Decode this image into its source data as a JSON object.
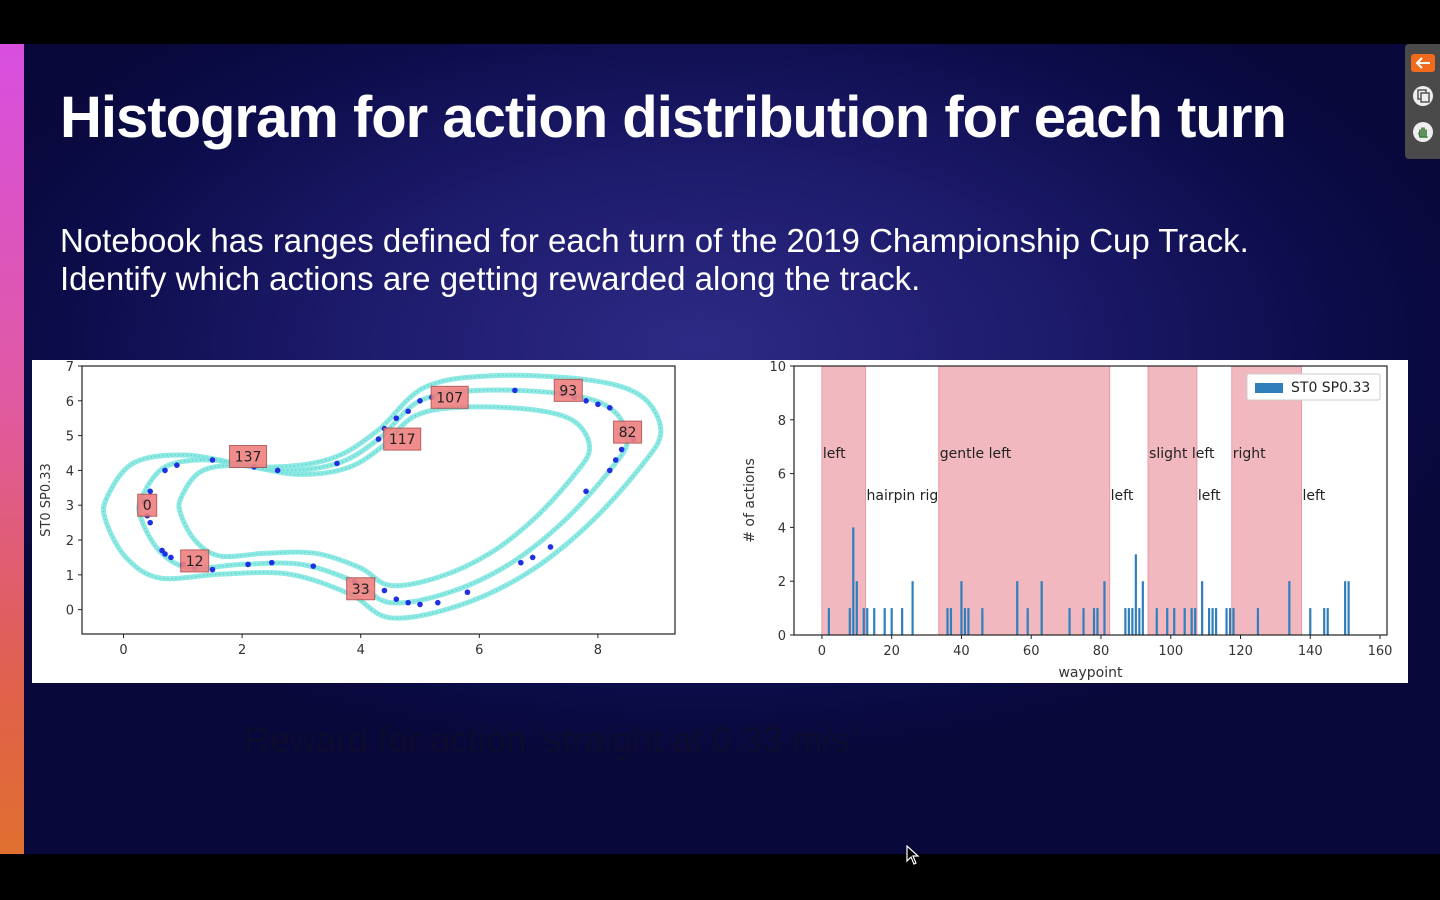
{
  "slide": {
    "title": "Histogram for action distribution for each turn",
    "subtitle_line1": "Notebook has ranges defined for each turn of the 2019 Championship Cup Track.",
    "subtitle_line2": "Identify which actions are getting rewarded along the track.",
    "caption": "Reward for action ‘straight at 0.33 m/s’"
  },
  "toolbar": {
    "icons": [
      "back-arrow-icon",
      "copy-icon",
      "hand-icon"
    ],
    "accent_color": "#f26b1d"
  },
  "chart_data": [
    {
      "type": "scatter",
      "ylabel": "ST0 SP0.33",
      "xlim": [
        -0.7,
        9.3
      ],
      "ylim": [
        -0.7,
        7
      ],
      "xticks": [
        0,
        2,
        4,
        6,
        8
      ],
      "yticks": [
        0,
        1,
        2,
        3,
        4,
        5,
        6,
        7
      ],
      "waypoint_labels": [
        {
          "text": "0",
          "x": 0.4,
          "y": 3.0
        },
        {
          "text": "12",
          "x": 1.2,
          "y": 1.4
        },
        {
          "text": "33",
          "x": 4.0,
          "y": 0.6
        },
        {
          "text": "82",
          "x": 8.5,
          "y": 5.1
        },
        {
          "text": "93",
          "x": 7.5,
          "y": 6.3
        },
        {
          "text": "107",
          "x": 5.5,
          "y": 6.1
        },
        {
          "text": "117",
          "x": 4.7,
          "y": 4.9
        },
        {
          "text": "137",
          "x": 2.1,
          "y": 4.4
        }
      ],
      "action_points": [
        [
          0.45,
          3.4
        ],
        [
          0.35,
          3.1
        ],
        [
          0.4,
          2.7
        ],
        [
          0.45,
          2.5
        ],
        [
          0.65,
          1.7
        ],
        [
          0.7,
          1.6
        ],
        [
          0.8,
          1.5
        ],
        [
          1.0,
          1.3
        ],
        [
          1.2,
          1.2
        ],
        [
          1.5,
          1.15
        ],
        [
          2.1,
          1.3
        ],
        [
          2.5,
          1.35
        ],
        [
          3.2,
          1.25
        ],
        [
          3.9,
          0.8
        ],
        [
          4.4,
          0.55
        ],
        [
          4.6,
          0.3
        ],
        [
          4.8,
          0.2
        ],
        [
          5.0,
          0.15
        ],
        [
          5.3,
          0.2
        ],
        [
          5.8,
          0.5
        ],
        [
          6.7,
          1.35
        ],
        [
          6.9,
          1.5
        ],
        [
          7.2,
          1.8
        ],
        [
          7.8,
          3.4
        ],
        [
          8.2,
          4.0
        ],
        [
          8.3,
          4.3
        ],
        [
          8.4,
          4.6
        ],
        [
          8.6,
          4.9
        ],
        [
          8.2,
          5.8
        ],
        [
          8.0,
          5.9
        ],
        [
          7.8,
          6.0
        ],
        [
          7.6,
          6.1
        ],
        [
          7.4,
          6.2
        ],
        [
          6.6,
          6.3
        ],
        [
          5.2,
          6.1
        ],
        [
          5.0,
          6.0
        ],
        [
          4.8,
          5.7
        ],
        [
          4.6,
          5.5
        ],
        [
          4.4,
          5.2
        ],
        [
          4.3,
          4.9
        ],
        [
          3.6,
          4.2
        ],
        [
          2.6,
          4.0
        ],
        [
          2.2,
          4.1
        ],
        [
          1.5,
          4.3
        ],
        [
          0.9,
          4.15
        ],
        [
          0.7,
          4.0
        ]
      ]
    },
    {
      "type": "bar",
      "xlabel": "waypoint",
      "ylabel": "# of actions",
      "xlim": [
        -8,
        162
      ],
      "ylim": [
        0,
        10
      ],
      "xticks": [
        0,
        20,
        40,
        60,
        80,
        100,
        120,
        140,
        160
      ],
      "yticks": [
        0,
        2,
        4,
        6,
        8,
        10
      ],
      "legend_location": "upper right",
      "series": [
        {
          "name": "ST0 SP0.33",
          "color": "#2f7fbd",
          "x": [
            2,
            8,
            9,
            10,
            12,
            13,
            15,
            18,
            20,
            23,
            26,
            36,
            37,
            40,
            41,
            42,
            46,
            56,
            59,
            63,
            71,
            75,
            78,
            79,
            81,
            87,
            88,
            89,
            90,
            91,
            92,
            96,
            99,
            101,
            104,
            106,
            107,
            109,
            111,
            112,
            113,
            116,
            117,
            118,
            125,
            134,
            140,
            144,
            145,
            150,
            151
          ],
          "values": [
            1,
            1,
            4,
            2,
            1,
            1,
            1,
            1,
            1,
            1,
            2,
            1,
            1,
            2,
            1,
            1,
            1,
            2,
            1,
            2,
            1,
            1,
            1,
            1,
            2,
            1,
            1,
            1,
            3,
            1,
            2,
            1,
            1,
            1,
            1,
            1,
            1,
            2,
            1,
            1,
            1,
            1,
            1,
            1,
            1,
            2,
            1,
            1,
            1,
            2,
            2
          ]
        }
      ],
      "shaded_regions": [
        {
          "from": 0,
          "to": 12.5,
          "label": "left",
          "row": "upper"
        },
        {
          "from": 12.5,
          "to": 33.5,
          "label": "hairpin right",
          "row": "lower",
          "shaded": false
        },
        {
          "from": 33.5,
          "to": 82.5,
          "label": "gentle left",
          "row": "upper"
        },
        {
          "from": 82.5,
          "to": 93.5,
          "label": "left",
          "row": "lower",
          "shaded": false
        },
        {
          "from": 93.5,
          "to": 107.5,
          "label": "slight left",
          "row": "upper"
        },
        {
          "from": 107.5,
          "to": 117.5,
          "label": "left",
          "row": "lower",
          "shaded": false
        },
        {
          "from": 117.5,
          "to": 137.5,
          "label": "right",
          "row": "upper"
        },
        {
          "from": 137.5,
          "to": 162,
          "label": "left",
          "row": "lower",
          "shaded": false
        }
      ]
    }
  ]
}
